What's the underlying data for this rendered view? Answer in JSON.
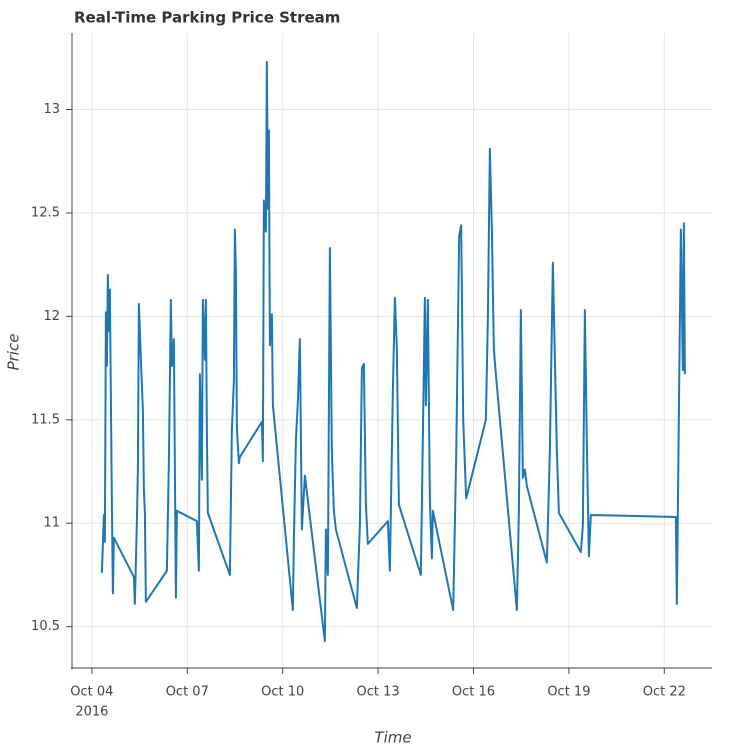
{
  "chart_data": {
    "type": "line",
    "title": "Real-Time Parking Price Stream",
    "x_label": "Time",
    "y_label": "Price",
    "xlim": [
      "2016-10-03 09:00",
      "2016-10-23 12:00"
    ],
    "ylim": [
      10.3,
      13.37
    ],
    "xticks": [
      {
        "value": "2016-10-04 00:00",
        "label": "Oct 04",
        "sublabel": "2016"
      },
      {
        "value": "2016-10-07 00:00",
        "label": "Oct 07"
      },
      {
        "value": "2016-10-10 00:00",
        "label": "Oct 10"
      },
      {
        "value": "2016-10-13 00:00",
        "label": "Oct 13"
      },
      {
        "value": "2016-10-16 00:00",
        "label": "Oct 16"
      },
      {
        "value": "2016-10-19 00:00",
        "label": "Oct 19"
      },
      {
        "value": "2016-10-22 00:00",
        "label": "Oct 22"
      }
    ],
    "yticks": [
      10.5,
      11,
      11.5,
      12,
      12.5,
      13
    ],
    "grid": true,
    "x": [
      "2016-10-04 07:33",
      "2016-10-04 09:03",
      "2016-10-04 09:49",
      "2016-10-04 10:34",
      "2016-10-04 11:19",
      "2016-10-04 12:04",
      "2016-10-04 12:50",
      "2016-10-04 13:35",
      "2016-10-04 15:06",
      "2016-10-04 15:51",
      "2016-10-04 16:36",
      "2016-10-05 07:42",
      "2016-10-05 08:27",
      "2016-10-05 09:58",
      "2016-10-05 10:43",
      "2016-10-05 11:28",
      "2016-10-05 12:59",
      "2016-10-05 14:29",
      "2016-10-05 15:15",
      "2016-10-05 16:00",
      "2016-10-05 16:45",
      "2016-10-06 08:36",
      "2016-10-06 10:07",
      "2016-10-06 11:37",
      "2016-10-06 12:22",
      "2016-10-06 13:53",
      "2016-10-06 15:24",
      "2016-10-06 16:09",
      "2016-10-07 07:14",
      "2016-10-07 08:45",
      "2016-10-07 09:30",
      "2016-10-07 11:01",
      "2016-10-07 11:46",
      "2016-10-07 13:17",
      "2016-10-07 14:02",
      "2016-10-07 14:47",
      "2016-10-07 15:32",
      "2016-10-08 08:09",
      "2016-10-08 09:39",
      "2016-10-08 11:10",
      "2016-10-08 11:55",
      "2016-10-08 12:40",
      "2016-10-08 13:26",
      "2016-10-08 14:56",
      "2016-10-08 15:41",
      "2016-10-09 08:18",
      "2016-10-09 09:03",
      "2016-10-09 09:48",
      "2016-10-09 11:19",
      "2016-10-09 12:04",
      "2016-10-09 12:49",
      "2016-10-09 13:35",
      "2016-10-09 14:20",
      "2016-10-09 15:50",
      "2016-10-09 16:36",
      "2016-10-10 07:41",
      "2016-10-10 08:27",
      "2016-10-10 09:57",
      "2016-10-10 11:28",
      "2016-10-10 12:58",
      "2016-10-10 14:29",
      "2016-10-10 16:45",
      "2016-10-11 07:50",
      "2016-10-11 08:36",
      "2016-10-11 10:06",
      "2016-10-11 11:37",
      "2016-10-11 13:07",
      "2016-10-11 14:38",
      "2016-10-11 16:08",
      "2016-10-12 07:59",
      "2016-10-12 10:15",
      "2016-10-12 11:46",
      "2016-10-12 13:16",
      "2016-10-12 14:47",
      "2016-10-12 16:17",
      "2016-10-13 07:23",
      "2016-10-13 08:53",
      "2016-10-13 11:09",
      "2016-10-13 12:40",
      "2016-10-13 14:10",
      "2016-10-13 15:41",
      "2016-10-14 08:17",
      "2016-10-14 11:18",
      "2016-10-14 12:04",
      "2016-10-14 13:34",
      "2016-10-14 15:05",
      "2016-10-14 16:35",
      "2016-10-14 17:20",
      "2016-10-15 08:41",
      "2016-10-15 10:57",
      "2016-10-15 13:12",
      "2016-10-15 14:43",
      "2016-10-15 16:14",
      "2016-10-15 18:29",
      "2016-10-16 09:20",
      "2016-10-16 10:51",
      "2016-10-16 12:21",
      "2016-10-16 13:52",
      "2016-10-16 15:23",
      "2016-10-16 16:53",
      "2016-10-17 08:44",
      "2016-10-17 10:15",
      "2016-10-17 11:45",
      "2016-10-17 13:16",
      "2016-10-17 14:46",
      "2016-10-17 16:17",
      "2016-10-18 07:22",
      "2016-10-18 09:38",
      "2016-10-18 11:54",
      "2016-10-18 13:25",
      "2016-10-18 14:55",
      "2016-10-18 16:26",
      "2016-10-19 09:02",
      "2016-10-19 10:33",
      "2016-10-19 12:03",
      "2016-10-19 13:34",
      "2016-10-19 15:04",
      "2016-10-19 16:35",
      "2016-10-22 08:44",
      "2016-10-22 09:29",
      "2016-10-22 10:59",
      "2016-10-22 12:30",
      "2016-10-22 14:00",
      "2016-10-22 14:46",
      "2016-10-22 15:31"
    ],
    "series": [
      {
        "name": "Price",
        "color": "#1f77b4",
        "values": [
          10.76,
          11.04,
          10.91,
          12.02,
          11.76,
          12.2,
          11.93,
          12.13,
          11.09,
          10.66,
          10.93,
          10.74,
          10.61,
          11.01,
          11.26,
          12.06,
          11.79,
          11.55,
          11.16,
          11.05,
          10.62,
          10.77,
          11.3,
          12.08,
          11.76,
          11.89,
          10.64,
          11.06,
          11.01,
          10.77,
          11.72,
          11.21,
          12.08,
          11.79,
          12.08,
          11.45,
          11.05,
          10.75,
          11.45,
          11.69,
          12.42,
          12.22,
          11.46,
          11.29,
          11.32,
          11.49,
          11.3,
          12.56,
          12.41,
          13.23,
          12.52,
          12.9,
          11.86,
          12.01,
          11.57,
          10.58,
          10.92,
          11.4,
          11.59,
          11.89,
          10.97,
          11.23,
          10.43,
          10.97,
          10.75,
          12.33,
          11.34,
          11.06,
          10.97,
          10.59,
          10.99,
          11.75,
          11.77,
          11.09,
          10.9,
          11.01,
          10.77,
          11.64,
          12.09,
          11.84,
          11.09,
          10.75,
          12.09,
          11.57,
          12.08,
          11.11,
          10.83,
          11.06,
          10.58,
          11.33,
          12.39,
          12.44,
          11.5,
          11.12,
          11.5,
          11.99,
          12.81,
          12.42,
          11.84,
          11.72,
          10.58,
          11.06,
          12.03,
          11.22,
          11.26,
          11.18,
          10.81,
          11.35,
          12.26,
          11.79,
          11.35,
          11.05,
          10.86,
          10.99,
          12.03,
          11.38,
          10.84,
          11.04,
          11.03,
          10.61,
          11.52,
          12.42,
          11.74,
          12.45,
          11.72
        ]
      }
    ]
  }
}
